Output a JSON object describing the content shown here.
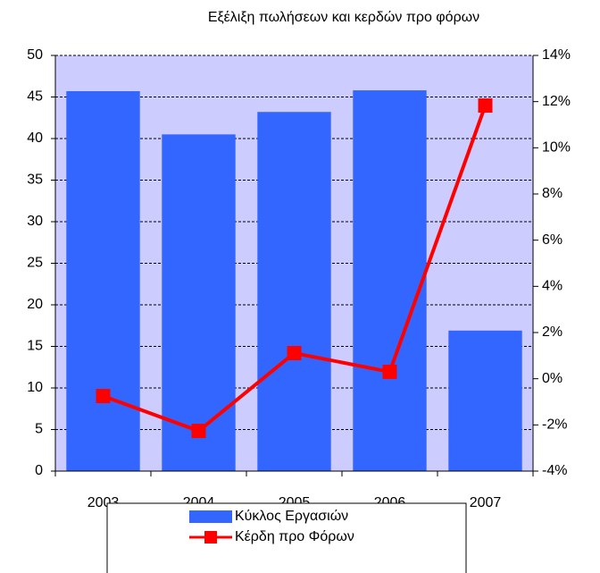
{
  "chart_data": {
    "type": "bar-line",
    "title": "Εξέλιξη πωλήσεων και κερδών προ φόρων",
    "categories": [
      "2003",
      "2004",
      "2005",
      "2006",
      "2007"
    ],
    "series": [
      {
        "name": "Κύκλος Εργασιών",
        "type": "bar",
        "color": "#3366ff",
        "values": [
          45.7,
          40.5,
          43.2,
          45.8,
          16.9
        ]
      },
      {
        "name": "Κέρδη προ Φόρων",
        "type": "line",
        "axis": "y2",
        "color": "#ff0000",
        "values": [
          -0.75,
          -2.26,
          1.11,
          0.3,
          11.83
        ]
      }
    ],
    "ylim": [
      0,
      50
    ],
    "yticks": [
      0,
      5,
      10,
      15,
      20,
      25,
      30,
      35,
      40,
      45,
      50
    ],
    "y2lim": [
      -4,
      14
    ],
    "y2ticks": [
      {
        "value": -4,
        "label": "-4%"
      },
      {
        "value": -2,
        "label": "-2%"
      },
      {
        "value": 0,
        "label": "0%"
      },
      {
        "value": 2,
        "label": "2%"
      },
      {
        "value": 4,
        "label": "4%"
      },
      {
        "value": 6,
        "label": "6%"
      },
      {
        "value": 8,
        "label": "8%"
      },
      {
        "value": 10,
        "label": "10%"
      },
      {
        "value": 12,
        "label": "12%"
      },
      {
        "value": 14,
        "label": "14%"
      }
    ],
    "grid": true,
    "legend": "bottom",
    "plot_background": "#ccccff"
  }
}
